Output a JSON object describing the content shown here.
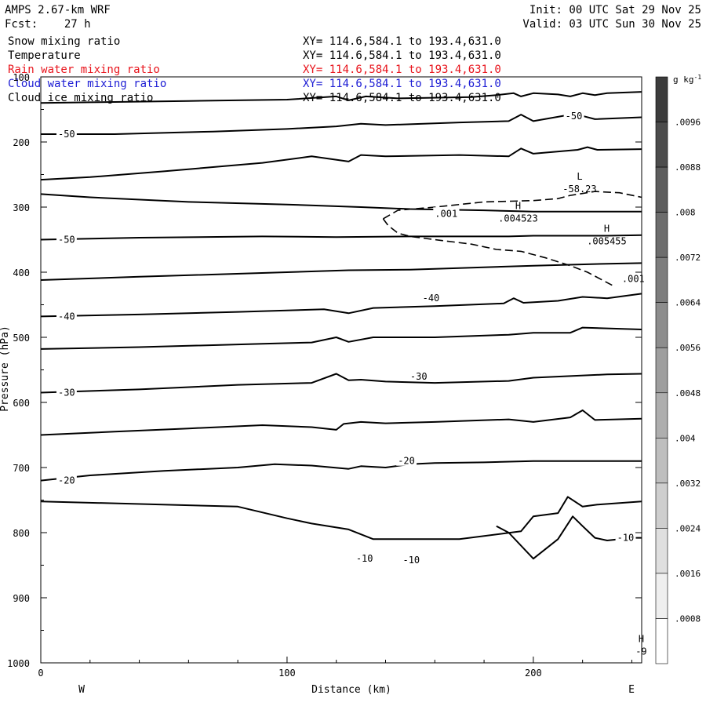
{
  "header": {
    "model": "AMPS 2.67-km WRF",
    "fcst_label": "Fcst:",
    "fcst_value": "27 h",
    "init": "Init: 00 UTC Sat 29 Nov 25",
    "valid": "Valid: 03 UTC Sun 30 Nov 25"
  },
  "fields": [
    {
      "name": "Snow mixing ratio",
      "xy": "XY= 114.6,584.1 to 193.4,631.0",
      "color": "#000000"
    },
    {
      "name": "Temperature",
      "xy": "XY= 114.6,584.1 to 193.4,631.0",
      "color": "#000000"
    },
    {
      "name": "Rain water mixing ratio",
      "xy": "XY= 114.6,584.1 to 193.4,631.0",
      "color": "#e8141c"
    },
    {
      "name": "Cloud water mixing ratio",
      "xy": "XY= 114.6,584.1 to 193.4,631.0",
      "color": "#1c1cd4"
    },
    {
      "name": "Cloud ice mixing ratio",
      "xy": "XY= 114.6,584.1 to 193.4,631.0",
      "color": "#000000"
    }
  ],
  "chart_data": {
    "type": "line",
    "title": "AMPS 2.67-km WRF",
    "xlabel": "Distance (km)",
    "ylabel": "Pressure (hPa)",
    "xlim": [
      0,
      244
    ],
    "ylim": [
      1000,
      100
    ],
    "x_ticks": [
      0,
      100,
      200
    ],
    "y_ticks": [
      100,
      200,
      300,
      400,
      500,
      600,
      700,
      800,
      900,
      1000
    ],
    "end_labels": {
      "left": "W",
      "right": "E"
    },
    "colorbar": {
      "unit": "g kg",
      "unit_exp": "-1",
      "labels": [
        ".0096",
        ".0088",
        ".008",
        ".0072",
        ".0064",
        ".0056",
        ".0048",
        ".004",
        ".0032",
        ".0024",
        ".0016",
        ".0008"
      ],
      "levels": [
        0.0096,
        0.0088,
        0.008,
        0.0072,
        0.0064,
        0.0056,
        0.0048,
        0.004,
        0.0032,
        0.0024,
        0.0016,
        0.0008
      ]
    },
    "temperature_isotherms": [
      {
        "x": [
          0,
          20,
          60,
          100,
          120,
          125,
          132,
          145,
          175,
          185,
          192,
          195,
          200,
          210,
          215,
          220,
          225,
          230,
          244
        ],
        "y": [
          140,
          139,
          137,
          135,
          130,
          136,
          130,
          133,
          131,
          128,
          125,
          130,
          125,
          127,
          130,
          125,
          128,
          125,
          123
        ]
      },
      {
        "x": [
          0,
          30,
          70,
          100,
          120,
          130,
          140,
          170,
          190,
          195,
          200,
          215,
          220,
          225,
          244
        ],
        "y": [
          188,
          188,
          184,
          180,
          176,
          172,
          174,
          170,
          168,
          158,
          168,
          158,
          160,
          165,
          162
        ]
      },
      {
        "x": [
          0,
          20,
          50,
          90,
          110,
          125,
          130,
          140,
          170,
          190,
          195,
          200,
          218,
          222,
          226,
          244
        ],
        "y": [
          258,
          254,
          245,
          232,
          222,
          230,
          220,
          222,
          220,
          222,
          210,
          218,
          212,
          208,
          212,
          211
        ]
      },
      {
        "x": [
          0,
          20,
          60,
          100,
          130,
          150,
          180,
          200,
          230,
          244
        ],
        "y": [
          280,
          285,
          292,
          296,
          300,
          303,
          305,
          307,
          307,
          307
        ]
      },
      {
        "x": [
          0,
          40,
          90,
          120,
          150,
          190,
          200,
          230,
          244
        ],
        "y": [
          350,
          347,
          345,
          346,
          345,
          345,
          344,
          344,
          343
        ]
      },
      {
        "x": [
          0,
          40,
          100,
          125,
          150,
          200,
          230,
          244
        ],
        "y": [
          412,
          407,
          400,
          397,
          396,
          390,
          387,
          386
        ]
      },
      {
        "x": [
          0,
          40,
          80,
          115,
          125,
          135,
          160,
          188,
          192,
          196,
          210,
          220,
          230,
          244
        ],
        "y": [
          468,
          465,
          461,
          457,
          463,
          455,
          452,
          448,
          440,
          447,
          444,
          438,
          440,
          433
        ]
      },
      {
        "x": [
          0,
          40,
          90,
          110,
          120,
          125,
          135,
          160,
          190,
          200,
          215,
          220,
          244
        ],
        "y": [
          518,
          515,
          510,
          508,
          500,
          507,
          500,
          500,
          496,
          493,
          493,
          485,
          488
        ]
      },
      {
        "x": [
          0,
          40,
          80,
          110,
          120,
          125,
          130,
          140,
          160,
          190,
          200,
          230,
          244
        ],
        "y": [
          585,
          580,
          573,
          570,
          556,
          566,
          565,
          568,
          570,
          567,
          562,
          557,
          556
        ]
      },
      {
        "x": [
          0,
          30,
          60,
          90,
          110,
          120,
          123,
          130,
          140,
          160,
          190,
          200,
          215,
          220,
          225,
          244
        ],
        "y": [
          650,
          645,
          640,
          635,
          638,
          642,
          633,
          630,
          632,
          630,
          626,
          630,
          623,
          612,
          627,
          625
        ]
      },
      {
        "x": [
          0,
          20,
          50,
          80,
          95,
          110,
          125,
          130,
          140,
          150,
          160,
          180,
          200,
          230,
          244
        ],
        "y": [
          720,
          712,
          705,
          700,
          695,
          697,
          702,
          698,
          700,
          695,
          693,
          692,
          690,
          690,
          690
        ]
      },
      {
        "x": [
          0,
          80,
          100,
          110,
          125,
          135,
          140,
          170,
          195,
          200,
          210,
          214,
          220,
          226,
          244
        ],
        "y": [
          752,
          760,
          778,
          786,
          795,
          810,
          810,
          810,
          798,
          775,
          770,
          745,
          760,
          757,
          752
        ]
      },
      {
        "x": [
          185,
          190,
          200,
          210,
          216,
          220,
          225,
          230,
          240,
          244
        ],
        "y": [
          790,
          800,
          840,
          810,
          775,
          790,
          808,
          812,
          808,
          808
        ]
      }
    ],
    "snow_contour_001": {
      "x": [
        139,
        141,
        145,
        150,
        160,
        175,
        185,
        195,
        205,
        215,
        222,
        227,
        232,
        238,
        244
      ],
      "y": [
        318,
        328,
        340,
        345,
        350,
        357,
        365,
        368,
        378,
        390,
        400,
        410,
        420,
        275,
        285
      ]
    },
    "contour_labels": [
      {
        "text": "-50",
        "x": 7,
        "y": 188
      },
      {
        "text": "-50",
        "x": 213,
        "y": 160
      },
      {
        "text": "-50",
        "x": 7,
        "y": 350
      },
      {
        "text": "-40",
        "x": 7,
        "y": 468
      },
      {
        "text": "-40",
        "x": 155,
        "y": 440
      },
      {
        "text": "-30",
        "x": 7,
        "y": 585
      },
      {
        "text": "-30",
        "x": 150,
        "y": 560
      },
      {
        "text": "-20",
        "x": 7,
        "y": 720
      },
      {
        "text": "-20",
        "x": 145,
        "y": 690
      },
      {
        "text": "-10",
        "x": 128,
        "y": 840
      },
      {
        "text": "-10",
        "x": 147,
        "y": 842
      },
      {
        "text": "-10",
        "x": 234,
        "y": 808
      },
      {
        "text": ".001",
        "x": 160,
        "y": 310
      },
      {
        "text": ".001",
        "x": 236,
        "y": 410
      }
    ],
    "extrema": [
      {
        "mark": "L",
        "value": "-58.23",
        "x": 215,
        "y": 265
      },
      {
        "mark": "H",
        "value": ".004523",
        "x": 190,
        "y": 310
      },
      {
        "mark": "H",
        "value": ".005455",
        "x": 226,
        "y": 345
      },
      {
        "mark": "H",
        "value": "-9",
        "x": 240,
        "y": 975
      }
    ]
  }
}
